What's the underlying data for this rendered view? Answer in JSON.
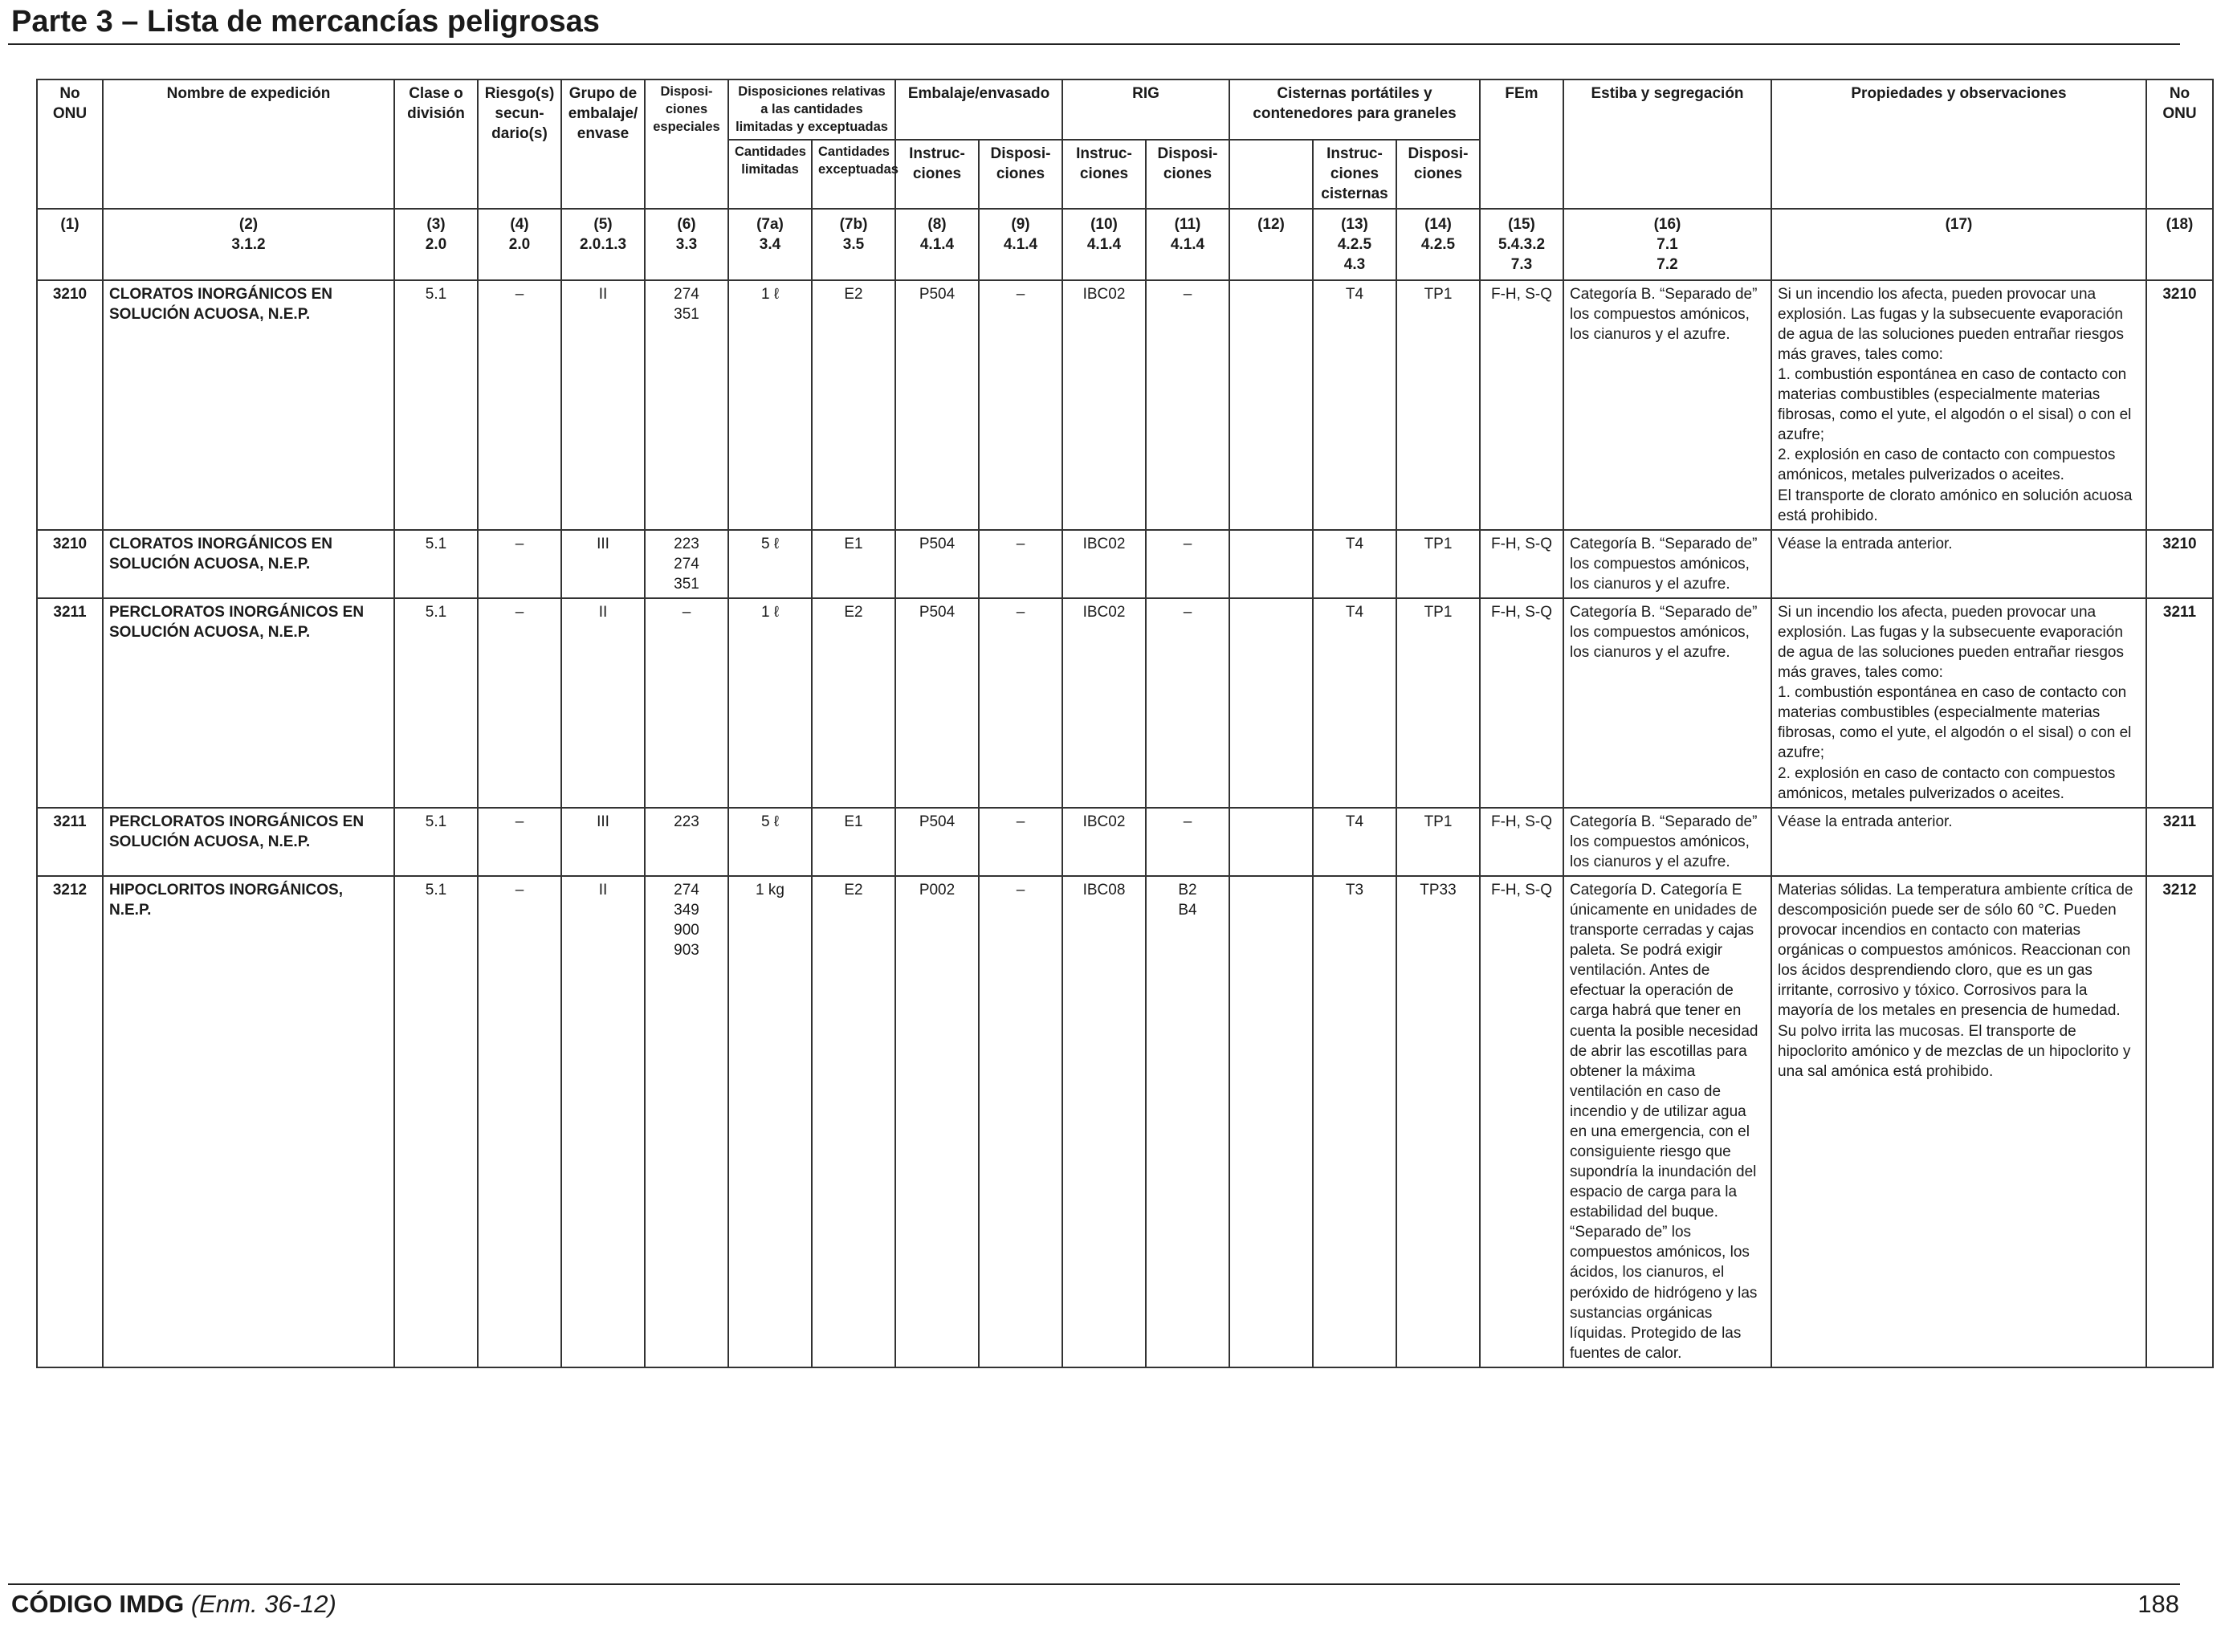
{
  "page": {
    "title": "Parte 3 – Lista de mercancías peligrosas",
    "footer_code": "CÓDIGO IMDG",
    "footer_amend": "(Enm. 36-12)",
    "page_number": "188"
  },
  "headers": {
    "no_onu": "No ONU",
    "nombre": "Nombre de expedición",
    "clase": "Clase o división",
    "riesgo": "Riesgo(s) secun-dario(s)",
    "grupo": "Grupo de embalaje/ envase",
    "disposiciones": "Disposi-ciones especiales",
    "cantidades_group": "Disposiciones relativas a las cantidades limitadas y exceptuadas",
    "cant_limitadas": "Cantidades limitadas",
    "cant_exceptuadas": "Cantidades exceptuadas",
    "embalaje_group": "Embalaje/envasado",
    "rig_group": "RIG",
    "cisternas_group": "Cisternas portátiles y contenedores para graneles",
    "instrucciones": "Instruc-ciones",
    "disposiciones_sub": "Disposi-ciones",
    "instrucciones_cisternas": "Instruc-ciones cisternas",
    "fem": "FEm",
    "estiba": "Estiba y segregación",
    "propiedades": "Propiedades y observaciones",
    "no_onu_right": "No ONU"
  },
  "refs": [
    [
      "(1)"
    ],
    [
      "(2)",
      "3.1.2"
    ],
    [
      "(3)",
      "2.0"
    ],
    [
      "(4)",
      "2.0"
    ],
    [
      "(5)",
      "2.0.1.3"
    ],
    [
      "(6)",
      "3.3"
    ],
    [
      "(7a)",
      "3.4"
    ],
    [
      "(7b)",
      "3.5"
    ],
    [
      "(8)",
      "4.1.4"
    ],
    [
      "(9)",
      "4.1.4"
    ],
    [
      "(10)",
      "4.1.4"
    ],
    [
      "(11)",
      "4.1.4"
    ],
    [
      "(12)"
    ],
    [
      "(13)",
      "4.2.5",
      "4.3"
    ],
    [
      "(14)",
      "4.2.5"
    ],
    [
      "(15)",
      "5.4.3.2",
      "7.3"
    ],
    [
      "(16)",
      "7.1",
      "7.2"
    ],
    [
      "(17)"
    ],
    [
      "(18)"
    ]
  ],
  "rows": [
    {
      "un": "3210",
      "name": "CLORATOS INORGÁNICOS EN SOLUCIÓN ACUOSA, N.E.P.",
      "class": "5.1",
      "sub": "–",
      "pg": "II",
      "sp": [
        "274",
        "351"
      ],
      "lq": "1 ℓ",
      "eq": "E2",
      "pi": "P504",
      "pp": "–",
      "ibc": "IBC02",
      "ibcp": [],
      "ibcp_text": "–",
      "c12": "",
      "tank": "T4",
      "tankp": "TP1",
      "ems": "F-H, S-Q",
      "stow": "Categoría B. “Separado de” los compuestos amónicos, los cianuros y el azufre.",
      "props": "Si un incendio los afecta, pueden provocar una explosión. Las fugas y la subsecuente evaporación de agua de las soluciones pueden entrañar riesgos más graves, tales como:|1. combustión espontánea en caso de contacto con materias combustibles (especialmente materias fibrosas, como el yute, el algodón o el sisal) o con el azufre;|2. explosión en caso de contacto con compuestos amónicos, metales pulverizados o aceites.|El transporte de clorato amónico en solución acuosa está prohibido."
    },
    {
      "un": "3210",
      "name": "CLORATOS INORGÁNICOS EN SOLUCIÓN ACUOSA, N.E.P.",
      "class": "5.1",
      "sub": "–",
      "pg": "III",
      "sp": [
        "223",
        "274",
        "351"
      ],
      "lq": "5 ℓ",
      "eq": "E1",
      "pi": "P504",
      "pp": "–",
      "ibc": "IBC02",
      "ibcp": [],
      "ibcp_text": "–",
      "c12": "",
      "tank": "T4",
      "tankp": "TP1",
      "ems": "F-H, S-Q",
      "stow": "Categoría B. “Separado de” los compuestos amónicos, los cianuros y el azufre.",
      "props": "Véase la entrada anterior."
    },
    {
      "un": "3211",
      "name": "PERCLORATOS INORGÁNICOS EN SOLUCIÓN ACUOSA, N.E.P.",
      "class": "5.1",
      "sub": "–",
      "pg": "II",
      "sp": [
        "–"
      ],
      "lq": "1 ℓ",
      "eq": "E2",
      "pi": "P504",
      "pp": "–",
      "ibc": "IBC02",
      "ibcp": [],
      "ibcp_text": "–",
      "c12": "",
      "tank": "T4",
      "tankp": "TP1",
      "ems": "F-H, S-Q",
      "stow": "Categoría B. “Separado de” los compuestos amónicos, los cianuros y el azufre.",
      "props": "Si un incendio los afecta, pueden provocar una explosión. Las fugas y la subsecuente evaporación de agua de las soluciones pueden entrañar riesgos más graves, tales como:|1. combustión espontánea en caso de contacto con materias combustibles (especialmente materias fibrosas, como el yute, el algodón o el sisal) o con el azufre;|2. explosión en caso de contacto con compuestos amónicos, metales pulverizados o aceites."
    },
    {
      "un": "3211",
      "name": "PERCLORATOS INORGÁNICOS EN SOLUCIÓN ACUOSA, N.E.P.",
      "class": "5.1",
      "sub": "–",
      "pg": "III",
      "sp": [
        "223"
      ],
      "lq": "5 ℓ",
      "eq": "E1",
      "pi": "P504",
      "pp": "–",
      "ibc": "IBC02",
      "ibcp": [],
      "ibcp_text": "–",
      "c12": "",
      "tank": "T4",
      "tankp": "TP1",
      "ems": "F-H, S-Q",
      "stow": "Categoría B. “Separado de” los compuestos amónicos, los cianuros y el azufre.",
      "props": "Véase la entrada anterior."
    },
    {
      "un": "3212",
      "name": "HIPOCLORITOS INORGÁNICOS, N.E.P.",
      "class": "5.1",
      "sub": "–",
      "pg": "II",
      "sp": [
        "274",
        "349",
        "900",
        "903"
      ],
      "lq": "1 kg",
      "eq": "E2",
      "pi": "P002",
      "pp": "–",
      "ibc": "IBC08",
      "ibcp": [
        "B2",
        "B4"
      ],
      "ibcp_text": "",
      "c12": "",
      "tank": "T3",
      "tankp": "TP33",
      "ems": "F-H, S-Q",
      "stow": "Categoría D. Categoría E únicamente en unidades de transporte cerradas y cajas paleta. Se podrá exigir ventilación. Antes de efectuar la operación de carga habrá que tener en cuenta la posible necesidad de abrir las escotillas para obtener la máxima ventilación en caso de incendio y de utilizar agua en una emergencia, con el consiguiente riesgo que supondría la inundación del espacio de carga para la estabilidad del buque. “Separado de” los compuestos amónicos, los ácidos, los cianuros, el peróxido de hidrógeno y las sustancias orgánicas líquidas. Protegido de las fuentes de calor.",
      "props": "Materias sólidas. La temperatura ambiente crítica de descomposición puede ser de sólo 60 °C. Pueden provocar incendios en contacto con materias orgánicas o compuestos amónicos. Reaccionan con los ácidos desprendiendo cloro, que es un gas irritante, corrosivo y tóxico. Corrosivos para la mayoría de los metales en presencia de humedad. Su polvo irrita las mucosas. El transporte de hipoclorito amónico y de mezclas de un hipoclorito y una sal amónica está prohibido."
    }
  ]
}
